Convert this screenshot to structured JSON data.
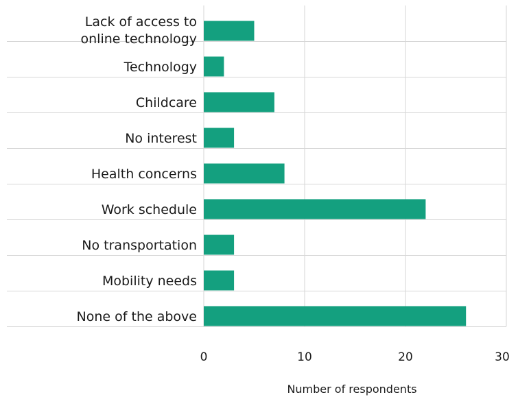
{
  "chart_data": {
    "type": "bar",
    "orientation": "horizontal",
    "categories": [
      [
        "Lack of access to",
        "online technology"
      ],
      [
        "Technology"
      ],
      [
        "Childcare"
      ],
      [
        "No interest"
      ],
      [
        "Health concerns"
      ],
      [
        "Work schedule"
      ],
      [
        "No transportation"
      ],
      [
        "Mobility needs"
      ],
      [
        "None of the above"
      ]
    ],
    "values": [
      5,
      2,
      7,
      3,
      8,
      22,
      3,
      3,
      26
    ],
    "xlabel": "Number of respondents",
    "xlim": [
      0,
      30
    ],
    "xticks": [
      0,
      10,
      20,
      30
    ],
    "grid": "vertical",
    "bar_color": "#14a07f"
  }
}
